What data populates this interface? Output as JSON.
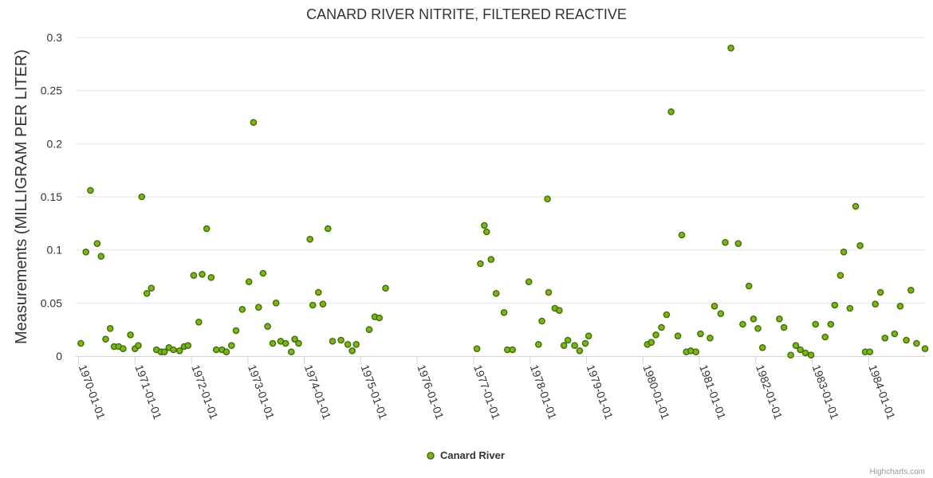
{
  "chart_data": {
    "type": "scatter",
    "title": "CANARD RIVER NITRITE, FILTERED REACTIVE",
    "ylabel": "Measurements (MILLIGRAM PER LITER)",
    "xlabel": "",
    "ylim": [
      0,
      0.3
    ],
    "yticks": [
      "0",
      "0.05",
      "0.1",
      "0.15",
      "0.2",
      "0.25",
      "0.3"
    ],
    "xticks": [
      "1970-01-01",
      "1971-01-01",
      "1972-01-01",
      "1973-01-01",
      "1974-01-01",
      "1975-01-01",
      "1976-01-01",
      "1977-01-01",
      "1978-01-01",
      "1979-01-01",
      "1980-01-01",
      "1981-01-01",
      "1982-01-01",
      "1983-01-01",
      "1984-01-01"
    ],
    "xrange": [
      1969.95,
      1985.0
    ],
    "legend": "bottom-center",
    "grid": true,
    "colors": {
      "marker": "#7cb518",
      "marker_edge": "#3f6d06",
      "grid": "#e6e6e6",
      "axis": "#ccd6eb"
    },
    "series": [
      {
        "name": "Canard River",
        "points": [
          [
            1970.04,
            0.012
          ],
          [
            1970.13,
            0.098
          ],
          [
            1970.21,
            0.156
          ],
          [
            1970.33,
            0.106
          ],
          [
            1970.4,
            0.094
          ],
          [
            1970.48,
            0.016
          ],
          [
            1970.56,
            0.026
          ],
          [
            1970.63,
            0.009
          ],
          [
            1970.71,
            0.009
          ],
          [
            1970.79,
            0.007
          ],
          [
            1970.92,
            0.02
          ],
          [
            1971.0,
            0.007
          ],
          [
            1971.06,
            0.01
          ],
          [
            1971.12,
            0.15
          ],
          [
            1971.21,
            0.059
          ],
          [
            1971.29,
            0.064
          ],
          [
            1971.38,
            0.006
          ],
          [
            1971.46,
            0.004
          ],
          [
            1971.52,
            0.004
          ],
          [
            1971.6,
            0.008
          ],
          [
            1971.68,
            0.006
          ],
          [
            1971.79,
            0.005
          ],
          [
            1971.87,
            0.009
          ],
          [
            1971.94,
            0.01
          ],
          [
            1972.04,
            0.076
          ],
          [
            1972.13,
            0.032
          ],
          [
            1972.19,
            0.077
          ],
          [
            1972.27,
            0.12
          ],
          [
            1972.35,
            0.074
          ],
          [
            1972.44,
            0.006
          ],
          [
            1972.54,
            0.006
          ],
          [
            1972.62,
            0.004
          ],
          [
            1972.71,
            0.01
          ],
          [
            1972.79,
            0.024
          ],
          [
            1972.9,
            0.044
          ],
          [
            1973.02,
            0.07
          ],
          [
            1973.1,
            0.22
          ],
          [
            1973.19,
            0.046
          ],
          [
            1973.27,
            0.078
          ],
          [
            1973.35,
            0.028
          ],
          [
            1973.44,
            0.012
          ],
          [
            1973.5,
            0.05
          ],
          [
            1973.58,
            0.014
          ],
          [
            1973.67,
            0.012
          ],
          [
            1973.77,
            0.004
          ],
          [
            1973.83,
            0.016
          ],
          [
            1973.9,
            0.012
          ],
          [
            1974.1,
            0.11
          ],
          [
            1974.15,
            0.048
          ],
          [
            1974.25,
            0.06
          ],
          [
            1974.33,
            0.049
          ],
          [
            1974.42,
            0.12
          ],
          [
            1974.5,
            0.014
          ],
          [
            1974.65,
            0.015
          ],
          [
            1974.77,
            0.011
          ],
          [
            1974.85,
            0.005
          ],
          [
            1974.92,
            0.011
          ],
          [
            1975.15,
            0.025
          ],
          [
            1975.25,
            0.037
          ],
          [
            1975.33,
            0.036
          ],
          [
            1975.44,
            0.064
          ],
          [
            1977.06,
            0.007
          ],
          [
            1977.12,
            0.087
          ],
          [
            1977.19,
            0.123
          ],
          [
            1977.23,
            0.117
          ],
          [
            1977.31,
            0.091
          ],
          [
            1977.4,
            0.059
          ],
          [
            1977.54,
            0.041
          ],
          [
            1977.6,
            0.006
          ],
          [
            1977.69,
            0.006
          ],
          [
            1977.98,
            0.07
          ],
          [
            1978.15,
            0.011
          ],
          [
            1978.21,
            0.033
          ],
          [
            1978.31,
            0.148
          ],
          [
            1978.33,
            0.06
          ],
          [
            1978.44,
            0.045
          ],
          [
            1978.52,
            0.043
          ],
          [
            1978.6,
            0.01
          ],
          [
            1978.67,
            0.015
          ],
          [
            1978.79,
            0.01
          ],
          [
            1978.88,
            0.005
          ],
          [
            1978.98,
            0.012
          ],
          [
            1979.04,
            0.019
          ],
          [
            1980.08,
            0.011
          ],
          [
            1980.15,
            0.013
          ],
          [
            1980.23,
            0.02
          ],
          [
            1980.33,
            0.027
          ],
          [
            1980.42,
            0.039
          ],
          [
            1980.5,
            0.23
          ],
          [
            1980.62,
            0.019
          ],
          [
            1980.69,
            0.114
          ],
          [
            1980.77,
            0.004
          ],
          [
            1980.85,
            0.005
          ],
          [
            1980.94,
            0.004
          ],
          [
            1981.02,
            0.021
          ],
          [
            1981.19,
            0.017
          ],
          [
            1981.27,
            0.047
          ],
          [
            1981.38,
            0.04
          ],
          [
            1981.46,
            0.107
          ],
          [
            1981.56,
            0.29
          ],
          [
            1981.69,
            0.106
          ],
          [
            1981.77,
            0.03
          ],
          [
            1981.88,
            0.066
          ],
          [
            1981.96,
            0.035
          ],
          [
            1982.04,
            0.026
          ],
          [
            1982.12,
            0.008
          ],
          [
            1982.42,
            0.035
          ],
          [
            1982.5,
            0.027
          ],
          [
            1982.62,
            0.001
          ],
          [
            1982.71,
            0.01
          ],
          [
            1982.79,
            0.006
          ],
          [
            1982.88,
            0.003
          ],
          [
            1982.98,
            0.001
          ],
          [
            1983.06,
            0.03
          ],
          [
            1983.23,
            0.018
          ],
          [
            1983.33,
            0.03
          ],
          [
            1983.4,
            0.048
          ],
          [
            1983.5,
            0.076
          ],
          [
            1983.56,
            0.098
          ],
          [
            1983.67,
            0.045
          ],
          [
            1983.77,
            0.141
          ],
          [
            1983.85,
            0.104
          ],
          [
            1983.94,
            0.004
          ],
          [
            1984.02,
            0.004
          ],
          [
            1984.12,
            0.049
          ],
          [
            1984.21,
            0.06
          ],
          [
            1984.29,
            0.017
          ],
          [
            1984.46,
            0.021
          ],
          [
            1984.56,
            0.047
          ],
          [
            1984.67,
            0.015
          ],
          [
            1984.75,
            0.062
          ],
          [
            1984.85,
            0.012
          ],
          [
            1985.0,
            0.007
          ]
        ]
      }
    ]
  },
  "credits": "Highcharts.com"
}
